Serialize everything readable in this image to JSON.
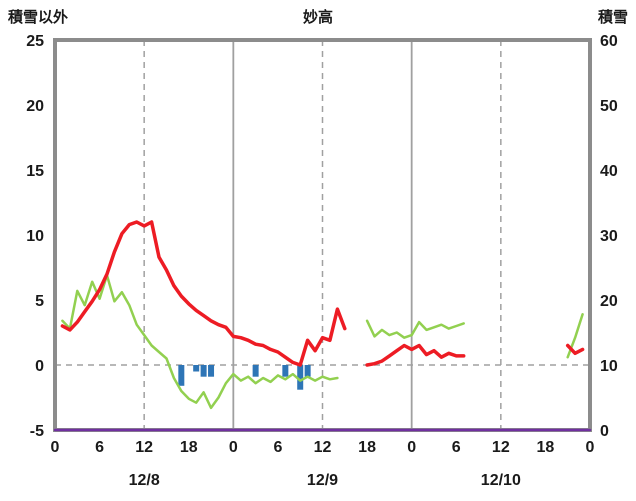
{
  "header": {
    "left_axis_title": "積雪以外",
    "station_name": "妙高",
    "right_axis_title": "積雪"
  },
  "chart_data": {
    "type": "line",
    "title": "妙高",
    "colors": {
      "frame": "#8c8c8c",
      "grid": "#a0a0a0",
      "text": "#1a1a1a",
      "red": "#ed1c24",
      "green": "#92d050",
      "blue": "#2e75b6",
      "purple": "#7030a0"
    },
    "left_axis": {
      "label": "積雪以外",
      "min": -5,
      "max": 25,
      "ticks": [
        25,
        20,
        15,
        10,
        5,
        0,
        -5
      ]
    },
    "right_axis": {
      "label": "積雪",
      "min": 0,
      "max": 60,
      "ticks": [
        60,
        50,
        40,
        30,
        20,
        10,
        0
      ]
    },
    "x_axis": {
      "min": 0,
      "max": 72,
      "tick_interval": 6,
      "tick_labels": [
        "0",
        "6",
        "12",
        "18",
        "0",
        "6",
        "12",
        "18",
        "0",
        "6",
        "12",
        "18",
        "0"
      ],
      "date_labels": [
        {
          "label": "12/8",
          "x": 12
        },
        {
          "label": "12/9",
          "x": 36
        },
        {
          "label": "12/10",
          "x": 60
        }
      ]
    },
    "gridlines": {
      "vertical_dashed_x": [
        12,
        36,
        60
      ],
      "vertical_solid_x": [
        24,
        48
      ],
      "horizontal_dashed_left": [
        0
      ]
    },
    "bar_series": {
      "name": "blue-bars",
      "axis": "left",
      "color": "#2e75b6",
      "bars": [
        {
          "x": 17,
          "v": -1.6
        },
        {
          "x": 19,
          "v": -0.5
        },
        {
          "x": 20,
          "v": -0.9
        },
        {
          "x": 21,
          "v": -0.9
        },
        {
          "x": 27,
          "v": -0.9
        },
        {
          "x": 31,
          "v": -0.9
        },
        {
          "x": 33,
          "v": -1.9
        },
        {
          "x": 34,
          "v": -0.9
        }
      ]
    },
    "series": [
      {
        "name": "green-line",
        "axis": "left",
        "color": "#92d050",
        "width": 2.5,
        "segments": [
          [
            [
              1,
              3.4
            ],
            [
              2,
              2.8
            ],
            [
              3,
              5.7
            ],
            [
              4,
              4.6
            ],
            [
              5,
              6.4
            ],
            [
              6,
              5.1
            ],
            [
              7,
              6.9
            ],
            [
              8,
              4.9
            ],
            [
              9,
              5.6
            ],
            [
              10,
              4.6
            ],
            [
              11,
              3.1
            ],
            [
              12,
              2.3
            ],
            [
              13,
              1.5
            ],
            [
              14,
              1.0
            ],
            [
              15,
              0.5
            ],
            [
              16,
              -1.0
            ],
            [
              17,
              -2.0
            ],
            [
              18,
              -2.6
            ],
            [
              19,
              -2.9
            ],
            [
              20,
              -2.1
            ],
            [
              21,
              -3.3
            ],
            [
              22,
              -2.5
            ],
            [
              23,
              -1.4
            ],
            [
              24,
              -0.7
            ],
            [
              25,
              -1.2
            ],
            [
              26,
              -0.9
            ],
            [
              27,
              -1.4
            ],
            [
              28,
              -1.0
            ],
            [
              29,
              -1.3
            ],
            [
              30,
              -0.8
            ],
            [
              31,
              -1.1
            ],
            [
              32,
              -0.7
            ],
            [
              33,
              -1.2
            ],
            [
              34,
              -0.9
            ],
            [
              35,
              -1.2
            ],
            [
              36,
              -0.9
            ],
            [
              37,
              -1.1
            ],
            [
              38,
              -1.0
            ]
          ],
          [
            [
              42,
              3.4
            ],
            [
              43,
              2.2
            ],
            [
              44,
              2.7
            ],
            [
              45,
              2.3
            ],
            [
              46,
              2.5
            ],
            [
              47,
              2.1
            ],
            [
              48,
              2.3
            ],
            [
              49,
              3.3
            ],
            [
              50,
              2.7
            ],
            [
              51,
              2.9
            ],
            [
              52,
              3.1
            ],
            [
              53,
              2.8
            ],
            [
              54,
              3.0
            ],
            [
              55,
              3.2
            ]
          ],
          [
            [
              69,
              0.6
            ],
            [
              70,
              2.1
            ],
            [
              71,
              3.9
            ]
          ]
        ]
      },
      {
        "name": "red-line",
        "axis": "left",
        "color": "#ed1c24",
        "width": 3.5,
        "segments": [
          [
            [
              1,
              3.0
            ],
            [
              2,
              2.7
            ],
            [
              3,
              3.3
            ],
            [
              4,
              4.1
            ],
            [
              5,
              4.9
            ],
            [
              6,
              5.8
            ],
            [
              7,
              7.0
            ],
            [
              8,
              8.7
            ],
            [
              9,
              10.1
            ],
            [
              10,
              10.8
            ],
            [
              11,
              11.0
            ],
            [
              12,
              10.7
            ],
            [
              13,
              11.0
            ],
            [
              14,
              8.3
            ],
            [
              15,
              7.3
            ],
            [
              16,
              6.1
            ],
            [
              17,
              5.3
            ],
            [
              18,
              4.7
            ],
            [
              19,
              4.2
            ],
            [
              20,
              3.8
            ],
            [
              21,
              3.4
            ],
            [
              22,
              3.1
            ],
            [
              23,
              2.9
            ],
            [
              24,
              2.2
            ],
            [
              25,
              2.1
            ],
            [
              26,
              1.9
            ],
            [
              27,
              1.6
            ],
            [
              28,
              1.5
            ],
            [
              29,
              1.2
            ],
            [
              30,
              1.0
            ],
            [
              31,
              0.6
            ],
            [
              32,
              0.2
            ],
            [
              33,
              0.0
            ],
            [
              34,
              1.9
            ],
            [
              35,
              1.1
            ],
            [
              36,
              2.1
            ],
            [
              37,
              1.9
            ],
            [
              38,
              4.3
            ],
            [
              39,
              2.8
            ]
          ],
          [
            [
              42,
              0.0
            ],
            [
              43,
              0.1
            ],
            [
              44,
              0.3
            ],
            [
              45,
              0.7
            ],
            [
              46,
              1.1
            ],
            [
              47,
              1.5
            ],
            [
              48,
              1.2
            ],
            [
              49,
              1.5
            ],
            [
              50,
              0.8
            ],
            [
              51,
              1.1
            ],
            [
              52,
              0.6
            ],
            [
              53,
              0.9
            ],
            [
              54,
              0.7
            ],
            [
              55,
              0.7
            ]
          ],
          [
            [
              69,
              1.5
            ],
            [
              70,
              0.9
            ],
            [
              71,
              1.2
            ]
          ]
        ]
      },
      {
        "name": "purple-line",
        "axis": "right",
        "color": "#7030a0",
        "width": 2.5,
        "segments": [
          [
            [
              0,
              0
            ],
            [
              72,
              0
            ]
          ]
        ]
      }
    ]
  }
}
